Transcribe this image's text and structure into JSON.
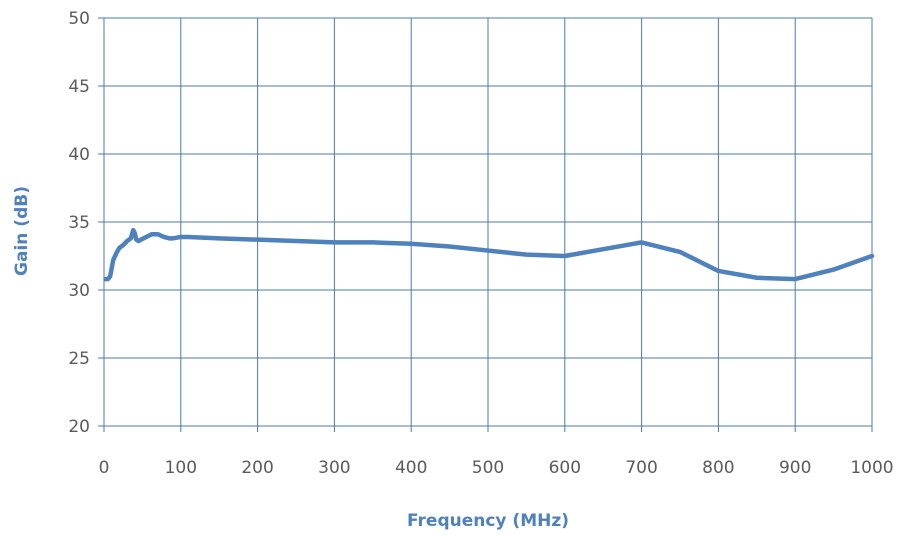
{
  "chart_data": {
    "type": "line",
    "title": "",
    "xlabel": "Frequency (MHz)",
    "ylabel": "Gain (dB)",
    "xlim": [
      0,
      1000
    ],
    "ylim": [
      20,
      50
    ],
    "x_ticks": [
      "0",
      "100",
      "200",
      "300",
      "400",
      "500",
      "600",
      "700",
      "800",
      "900",
      "1000"
    ],
    "y_ticks": [
      "20",
      "25",
      "30",
      "35",
      "40",
      "45",
      "50"
    ],
    "grid": true,
    "legend": "none",
    "colors": {
      "series": "#4f81bd",
      "grid": "#4a7ab5",
      "axis_title": "#4f81bd",
      "tick_text": "#5b5b5b"
    },
    "series": [
      {
        "x": [
          2,
          5,
          8,
          12,
          16,
          20,
          25,
          30,
          35,
          38,
          40,
          42,
          45,
          48,
          55,
          62,
          70,
          78,
          85,
          90,
          100,
          110,
          150,
          200,
          250,
          300,
          350,
          400,
          450,
          500,
          550,
          600,
          650,
          700,
          750,
          800,
          850,
          900,
          950,
          1000
        ],
        "y": [
          30.8,
          30.8,
          31.0,
          32.2,
          32.7,
          33.1,
          33.3,
          33.6,
          33.8,
          34.4,
          34.2,
          33.7,
          33.6,
          33.7,
          33.9,
          34.1,
          34.1,
          33.9,
          33.8,
          33.8,
          33.9,
          33.9,
          33.8,
          33.7,
          33.6,
          33.5,
          33.5,
          33.4,
          33.2,
          32.9,
          32.6,
          32.5,
          33.0,
          33.5,
          32.8,
          31.4,
          30.9,
          30.8,
          31.5,
          32.5
        ]
      }
    ]
  }
}
